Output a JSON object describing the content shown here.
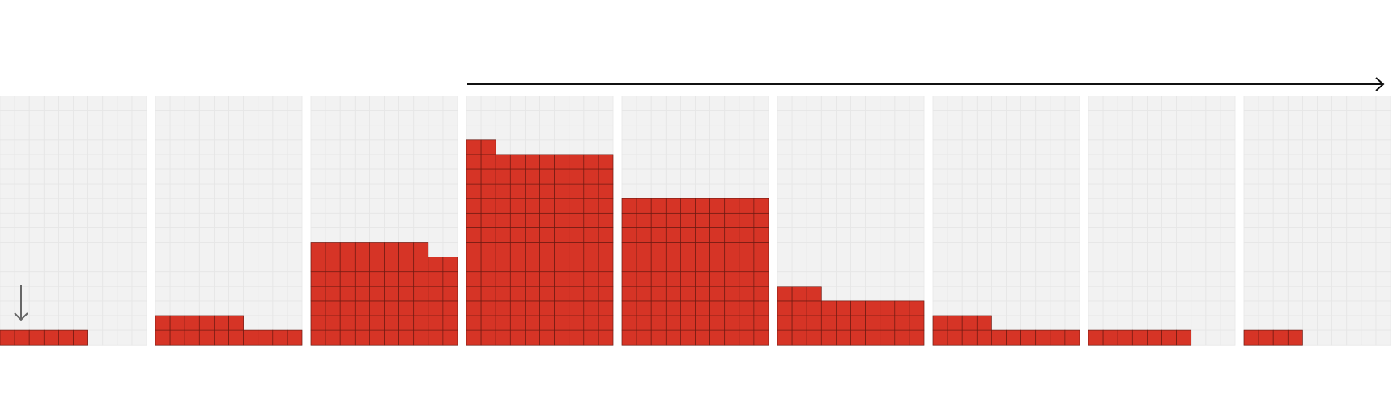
{
  "chart_data": {
    "type": "waffle",
    "values": [
      6,
      16,
      68,
      132,
      100,
      33,
      14,
      7,
      4
    ],
    "color": "#d63426"
  }
}
